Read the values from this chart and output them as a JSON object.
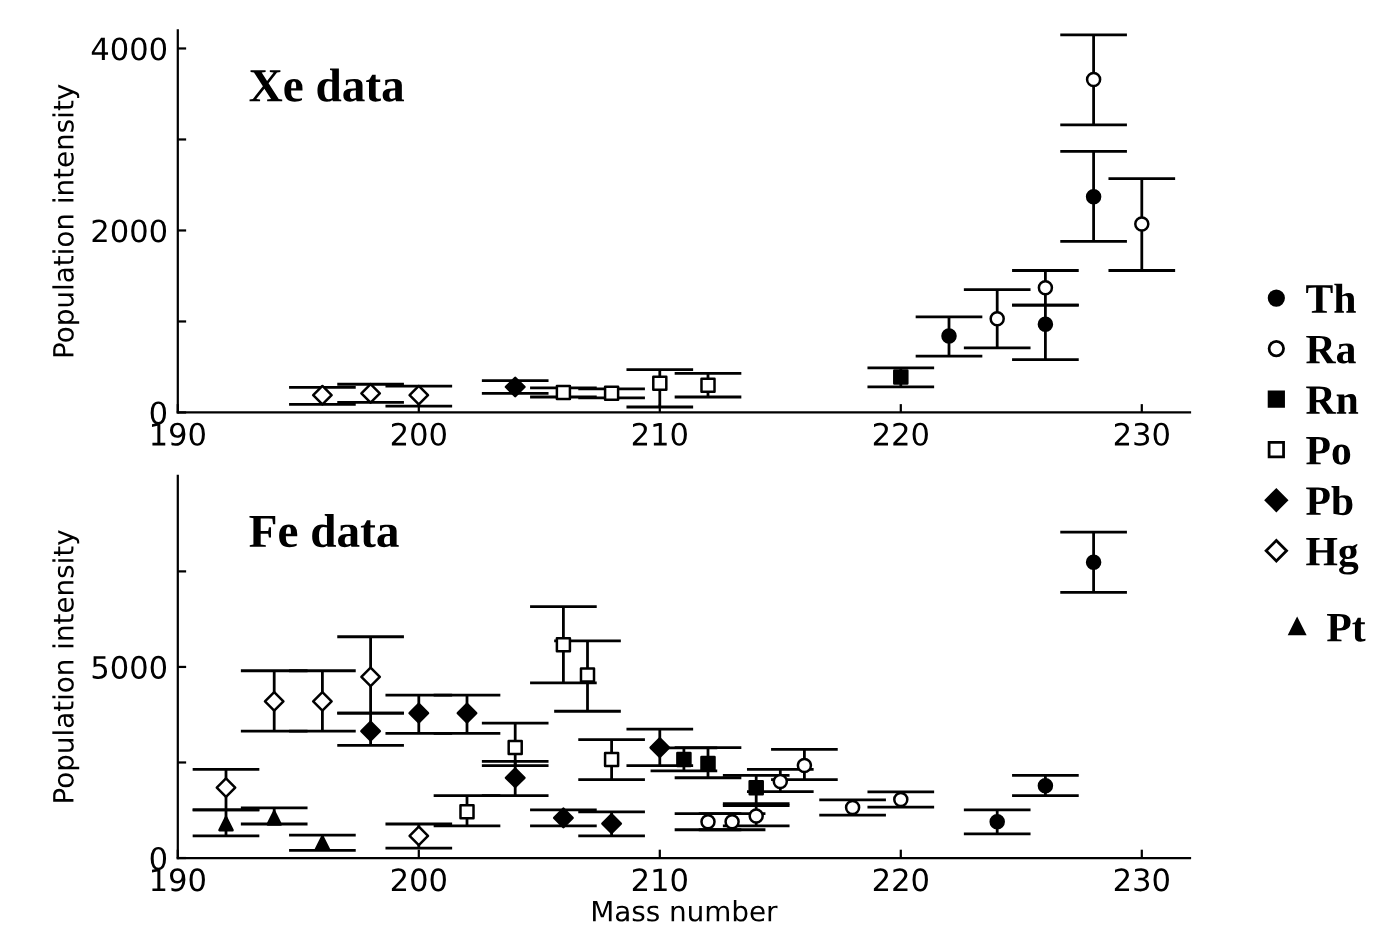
{
  "chart_data": [
    {
      "type": "scatter",
      "title": "Xe data",
      "ylabel": "Population intensity",
      "xlim": [
        190,
        232
      ],
      "xticks": [
        190,
        200,
        210,
        220,
        230
      ],
      "ylim": [
        0,
        4200
      ],
      "yticks": [
        0,
        {
          "value": 1000,
          "label": null
        },
        2000,
        {
          "value": 3000,
          "label": null
        },
        4000
      ],
      "grid": false,
      "legend": "right",
      "series": [
        {
          "name": "Th",
          "color": "#000000",
          "marker": "circle",
          "x": [
            222,
            226,
            228
          ],
          "values": [
            840,
            970,
            2370
          ],
          "errors": [
            [
              620,
              1050
            ],
            [
              580,
              1180
            ],
            [
              1880,
              2870
            ]
          ]
        },
        {
          "name": "Ra",
          "color": "#000000",
          "marker": "circle-open",
          "x": [
            224,
            226,
            228,
            230
          ],
          "values": [
            1030,
            1370,
            3660,
            2070
          ],
          "errors": [
            [
              710,
              1350
            ],
            [
              1180,
              1560
            ],
            [
              3160,
              4150
            ],
            [
              1560,
              2570
            ]
          ]
        },
        {
          "name": "Rn",
          "color": "#000000",
          "marker": "square",
          "x": [
            220
          ],
          "values": [
            390
          ],
          "errors": [
            [
              280,
              490
            ]
          ]
        },
        {
          "name": "Po",
          "color": "#000000",
          "marker": "square-open",
          "x": [
            206,
            208,
            210,
            212
          ],
          "values": [
            220,
            210,
            320,
            300
          ],
          "errors": [
            [
              170,
              270
            ],
            [
              160,
              260
            ],
            [
              60,
              470
            ],
            [
              170,
              430
            ]
          ]
        },
        {
          "name": "Pb",
          "color": "#000000",
          "marker": "diamond",
          "x": [
            204
          ],
          "values": [
            280
          ],
          "errors": [
            [
              210,
              350
            ]
          ]
        },
        {
          "name": "Hg",
          "color": "#000000",
          "marker": "diamond-open",
          "x": [
            196,
            198,
            200
          ],
          "values": [
            190,
            210,
            190
          ],
          "errors": [
            [
              90,
              275
            ],
            [
              110,
              310
            ],
            [
              70,
              290
            ]
          ]
        }
      ]
    },
    {
      "type": "scatter",
      "title": "Fe data",
      "xlabel": "Mass number",
      "ylabel": "Population intensity",
      "xlim": [
        190,
        232
      ],
      "xticks": [
        190,
        200,
        210,
        220,
        230
      ],
      "ylim": [
        0,
        10000
      ],
      "yticks": [
        0,
        {
          "value": 2500,
          "label": null
        },
        5000,
        {
          "value": 7500,
          "label": null
        }
      ],
      "grid": false,
      "legend": "right",
      "series": [
        {
          "name": "Th",
          "color": "#000000",
          "marker": "circle",
          "x": [
            224,
            226,
            228
          ],
          "values": [
            950,
            1890,
            7740
          ],
          "errors": [
            [
              630,
              1260
            ],
            [
              1630,
              2160
            ],
            [
              6950,
              8530
            ]
          ]
        },
        {
          "name": "Ra",
          "color": "#000000",
          "marker": "circle-open",
          "x": [
            212,
            213,
            214,
            215,
            216,
            218,
            220
          ],
          "values": [
            950,
            950,
            1100,
            2000,
            2420,
            1320,
            1530
          ],
          "errors": [
            [
              740,
              1160
            ],
            [
              740,
              1160
            ],
            [
              840,
              1370
            ],
            [
              1740,
              2320
            ],
            [
              2050,
              2840
            ],
            [
              1120,
              1520
            ],
            [
              1330,
              1730
            ]
          ]
        },
        {
          "name": "Rn",
          "color": "#000000",
          "marker": "square",
          "x": [
            211,
            212,
            214
          ],
          "values": [
            2580,
            2470,
            1840
          ],
          "errors": [
            [
              2280,
              2880
            ],
            [
              2100,
              2890
            ],
            [
              1420,
              2160
            ]
          ]
        },
        {
          "name": "Po",
          "color": "#000000",
          "marker": "square-open",
          "x": [
            202,
            204,
            206,
            207,
            208
          ],
          "values": [
            1210,
            2890,
            5580,
            4790,
            2580
          ],
          "errors": [
            [
              840,
              1630
            ],
            [
              2420,
              3530
            ],
            [
              4580,
              6580
            ],
            [
              3840,
              5680
            ],
            [
              2050,
              3100
            ]
          ]
        },
        {
          "name": "Pb",
          "color": "#000000",
          "marker": "diamond",
          "x": [
            198,
            200,
            202,
            204,
            206,
            208,
            210
          ],
          "values": [
            3320,
            3790,
            3790,
            2100,
            1050,
            900,
            2890
          ],
          "errors": [
            [
              2950,
              3790
            ],
            [
              3260,
              4260
            ],
            [
              3260,
              4260
            ],
            [
              1630,
              2530
            ],
            [
              840,
              1260
            ],
            [
              580,
              1210
            ],
            [
              2420,
              3370
            ]
          ]
        },
        {
          "name": "Hg",
          "color": "#000000",
          "marker": "diamond-open",
          "x": [
            192,
            194,
            196,
            198,
            200
          ],
          "values": [
            1840,
            4100,
            4100,
            4740,
            580
          ],
          "errors": [
            [
              1260,
              2320
            ],
            [
              3320,
              4900
            ],
            [
              3320,
              4900
            ],
            [
              3790,
              5790
            ],
            [
              260,
              890
            ]
          ]
        },
        {
          "name": "Pt",
          "color": "#000000",
          "marker": "triangle",
          "x": [
            192,
            194,
            196
          ],
          "values": [
            900,
            1050,
            400
          ],
          "errors": [
            [
              580,
              1260
            ],
            [
              890,
              1310
            ],
            [
              200,
              600
            ]
          ]
        }
      ]
    }
  ]
}
